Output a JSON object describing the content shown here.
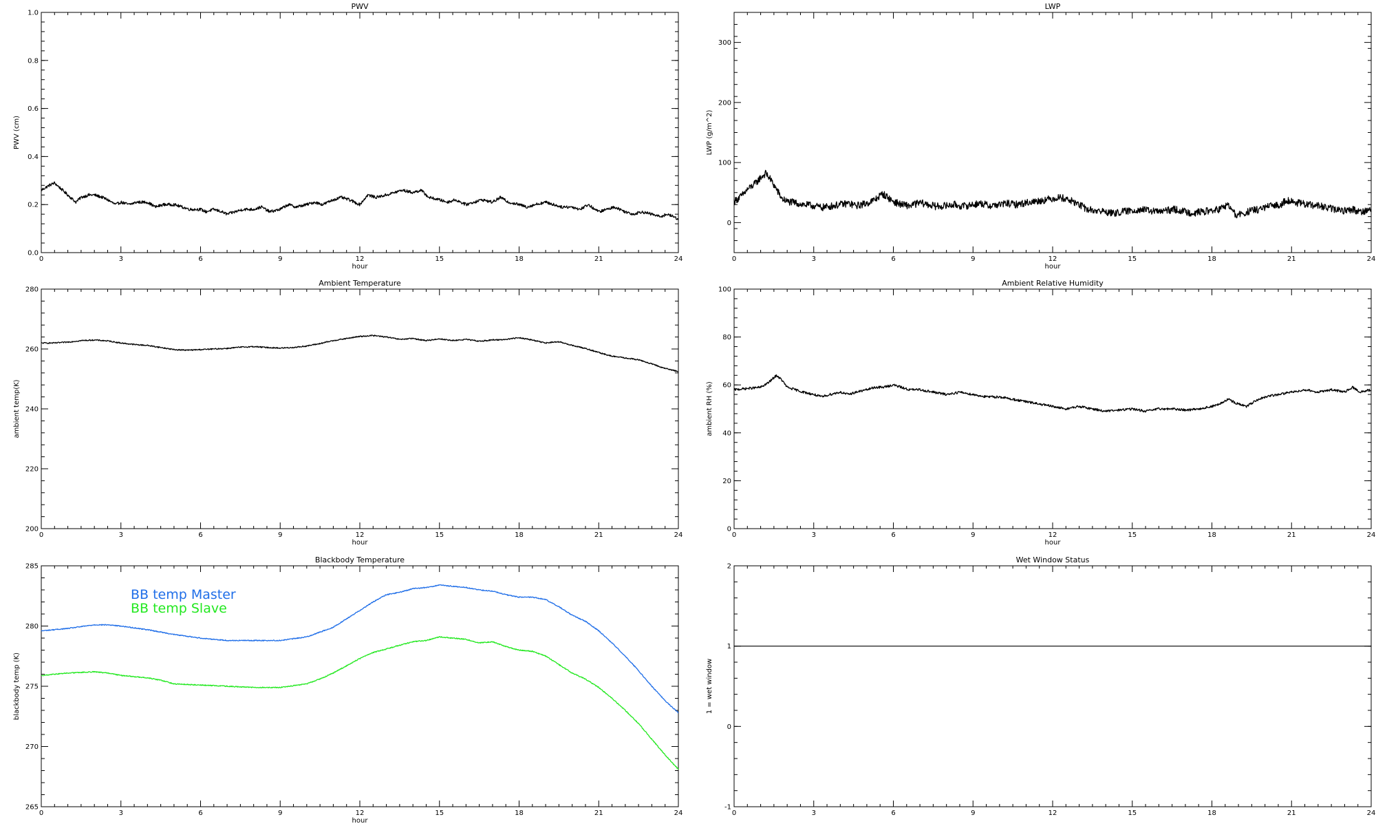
{
  "chart_data": [
    {
      "type": "line",
      "title": "PWV",
      "xlabel": "hour",
      "ylabel": "PWV (cm)",
      "xlim": [
        0,
        24
      ],
      "ylim": [
        0.0,
        1.0
      ],
      "xticks": [
        "0",
        "3",
        "6",
        "9",
        "12",
        "15",
        "18",
        "21",
        "24"
      ],
      "yticks": [
        "0.0",
        "0.2",
        "0.4",
        "0.6",
        "0.8",
        "1.0"
      ],
      "series": [
        {
          "color": "#000000",
          "noise": 0.006,
          "x": [
            0,
            0.3,
            0.5,
            0.8,
            1.0,
            1.3,
            1.5,
            1.8,
            2.0,
            2.3,
            2.5,
            2.8,
            3.0,
            3.3,
            3.6,
            4.0,
            4.3,
            4.6,
            5.0,
            5.3,
            5.6,
            6.0,
            6.2,
            6.5,
            6.8,
            7.0,
            7.3,
            7.6,
            8.0,
            8.3,
            8.6,
            9.0,
            9.3,
            9.6,
            10.0,
            10.3,
            10.6,
            11.0,
            11.3,
            11.6,
            12.0,
            12.3,
            12.6,
            13.0,
            13.3,
            13.6,
            14.0,
            14.3,
            14.6,
            15.0,
            15.3,
            15.6,
            16.0,
            16.3,
            16.6,
            17.0,
            17.3,
            17.6,
            18.0,
            18.3,
            18.6,
            19.0,
            19.3,
            19.6,
            20.0,
            20.3,
            20.6,
            21.0,
            21.3,
            21.6,
            22.0,
            22.3,
            22.6,
            23.0,
            23.3,
            23.6,
            24.0
          ],
          "y": [
            0.26,
            0.28,
            0.29,
            0.26,
            0.24,
            0.21,
            0.23,
            0.24,
            0.24,
            0.23,
            0.22,
            0.2,
            0.21,
            0.2,
            0.21,
            0.21,
            0.19,
            0.2,
            0.2,
            0.19,
            0.18,
            0.18,
            0.17,
            0.18,
            0.17,
            0.16,
            0.17,
            0.18,
            0.18,
            0.19,
            0.17,
            0.18,
            0.2,
            0.19,
            0.2,
            0.21,
            0.2,
            0.22,
            0.23,
            0.22,
            0.2,
            0.24,
            0.23,
            0.24,
            0.25,
            0.26,
            0.25,
            0.26,
            0.23,
            0.22,
            0.21,
            0.22,
            0.2,
            0.21,
            0.22,
            0.21,
            0.23,
            0.21,
            0.2,
            0.19,
            0.2,
            0.21,
            0.2,
            0.19,
            0.19,
            0.18,
            0.2,
            0.17,
            0.18,
            0.19,
            0.17,
            0.16,
            0.17,
            0.16,
            0.15,
            0.16,
            0.14
          ]
        }
      ]
    },
    {
      "type": "line",
      "title": "LWP",
      "xlabel": "hour",
      "ylabel": "LWP (g/m^2)",
      "xlim": [
        0,
        24
      ],
      "ylim": [
        -50,
        350
      ],
      "xticks": [
        "0",
        "3",
        "6",
        "9",
        "12",
        "15",
        "18",
        "21",
        "24"
      ],
      "yticks": [
        "0",
        "100",
        "200",
        "300"
      ],
      "series": [
        {
          "color": "#000000",
          "noise": 6,
          "x": [
            0,
            0.3,
            0.5,
            0.8,
            1.0,
            1.2,
            1.4,
            1.6,
            1.8,
            2.0,
            2.3,
            2.6,
            3.0,
            3.3,
            3.6,
            4.0,
            4.3,
            4.6,
            5.0,
            5.3,
            5.6,
            6.0,
            6.3,
            6.6,
            7.0,
            7.3,
            7.6,
            8.0,
            8.3,
            8.6,
            9.0,
            9.3,
            9.6,
            10.0,
            10.3,
            10.6,
            11.0,
            11.3,
            11.6,
            12.0,
            12.3,
            12.6,
            13.0,
            13.3,
            13.6,
            14.0,
            14.3,
            14.6,
            15.0,
            15.3,
            15.6,
            16.0,
            16.3,
            16.6,
            17.0,
            17.3,
            17.6,
            18.0,
            18.3,
            18.6,
            18.9,
            19.2,
            19.5,
            19.8,
            20.0,
            20.3,
            20.6,
            20.8,
            21.0,
            21.3,
            21.6,
            22.0,
            22.3,
            22.6,
            23.0,
            23.3,
            23.6,
            24.0
          ],
          "y": [
            35,
            45,
            55,
            65,
            75,
            82,
            70,
            55,
            40,
            35,
            33,
            30,
            28,
            25,
            27,
            30,
            32,
            28,
            32,
            38,
            48,
            35,
            30,
            28,
            33,
            30,
            27,
            28,
            30,
            27,
            30,
            32,
            28,
            30,
            32,
            30,
            33,
            35,
            37,
            40,
            42,
            38,
            30,
            22,
            20,
            18,
            15,
            18,
            20,
            22,
            20,
            18,
            20,
            22,
            18,
            16,
            18,
            20,
            22,
            30,
            12,
            15,
            20,
            22,
            25,
            28,
            30,
            38,
            35,
            32,
            30,
            28,
            25,
            22,
            20,
            22,
            18,
            22
          ]
        }
      ]
    },
    {
      "type": "line",
      "title": "Ambient Temperature",
      "xlabel": "hour",
      "ylabel": "ambient temp(K)",
      "xlim": [
        0,
        24
      ],
      "ylim": [
        200,
        280
      ],
      "xticks": [
        "0",
        "3",
        "6",
        "9",
        "12",
        "15",
        "18",
        "21",
        "24"
      ],
      "yticks": [
        "200",
        "220",
        "240",
        "260",
        "280"
      ],
      "series": [
        {
          "color": "#000000",
          "noise": 0.2,
          "x": [
            0,
            0.5,
            1.0,
            1.5,
            2.0,
            2.5,
            3.0,
            3.5,
            4.0,
            4.5,
            5.0,
            5.5,
            6.0,
            6.5,
            7.0,
            7.5,
            8.0,
            8.5,
            9.0,
            9.5,
            10.0,
            10.5,
            11.0,
            11.5,
            12.0,
            12.5,
            13.0,
            13.5,
            14.0,
            14.5,
            15.0,
            15.5,
            16.0,
            16.5,
            17.0,
            17.5,
            18.0,
            18.5,
            19.0,
            19.5,
            20.0,
            20.5,
            21.0,
            21.5,
            22.0,
            22.5,
            23.0,
            23.5,
            24.0
          ],
          "y": [
            262,
            262,
            262.3,
            262.8,
            263,
            262.7,
            262,
            261.5,
            261.2,
            260.5,
            259.8,
            259.6,
            259.8,
            260,
            260.2,
            260.6,
            260.8,
            260.5,
            260.3,
            260.5,
            261,
            261.8,
            262.8,
            263.5,
            264.2,
            264.5,
            264,
            263.2,
            263.5,
            262.8,
            263.4,
            262.8,
            263.2,
            262.6,
            263,
            263.2,
            263.8,
            263,
            262,
            262.4,
            261.2,
            260.2,
            258.8,
            257.6,
            257,
            256.4,
            255,
            253.5,
            252.5
          ]
        }
      ]
    },
    {
      "type": "line",
      "title": "Ambient Relative Humidity",
      "xlabel": "hour",
      "ylabel": "ambient RH (%)",
      "xlim": [
        0,
        24
      ],
      "ylim": [
        0,
        100
      ],
      "xticks": [
        "0",
        "3",
        "6",
        "9",
        "12",
        "15",
        "18",
        "21",
        "24"
      ],
      "yticks": [
        "0",
        "20",
        "40",
        "60",
        "80",
        "100"
      ],
      "series": [
        {
          "color": "#000000",
          "noise": 0.5,
          "x": [
            0,
            0.5,
            1.0,
            1.3,
            1.6,
            1.8,
            2.0,
            2.3,
            2.6,
            3.0,
            3.3,
            3.6,
            4.0,
            4.3,
            4.6,
            5.0,
            5.3,
            5.6,
            6.0,
            6.3,
            6.6,
            7.0,
            7.5,
            8.0,
            8.5,
            9.0,
            9.5,
            10.0,
            10.5,
            11.0,
            11.5,
            12.0,
            12.5,
            13.0,
            13.5,
            14.0,
            14.5,
            15.0,
            15.5,
            16.0,
            16.5,
            17.0,
            17.5,
            18.0,
            18.3,
            18.6,
            19.0,
            19.3,
            19.6,
            20.0,
            20.5,
            21.0,
            21.5,
            22.0,
            22.5,
            23.0,
            23.3,
            23.6,
            24.0
          ],
          "y": [
            58,
            58.5,
            59,
            61,
            64,
            62,
            59,
            58,
            57,
            56,
            55,
            56,
            57,
            56,
            57,
            58,
            59,
            59,
            60,
            59,
            58,
            58,
            57,
            56,
            57,
            56,
            55,
            55,
            54,
            53,
            52,
            51,
            50,
            51,
            50,
            49,
            49.5,
            50,
            49,
            50,
            50,
            49.5,
            50,
            51,
            52,
            54,
            52,
            51,
            53,
            55,
            56,
            57,
            58,
            57,
            58,
            57,
            59,
            57,
            58
          ]
        }
      ]
    },
    {
      "type": "line",
      "title": "Blackbody Temperature",
      "xlabel": "hour",
      "ylabel": "blackbody temp (K)",
      "xlim": [
        0,
        24
      ],
      "ylim": [
        265,
        285
      ],
      "xticks": [
        "0",
        "3",
        "6",
        "9",
        "12",
        "15",
        "18",
        "21",
        "24"
      ],
      "yticks": [
        "265",
        "270",
        "275",
        "280",
        "285"
      ],
      "series": [
        {
          "name": "BB temp Master",
          "color": "#1f6ee8",
          "noise": 0.04,
          "x": [
            0,
            1.0,
            2.0,
            2.5,
            3.0,
            4.0,
            5.0,
            6.0,
            7.0,
            8.0,
            9.0,
            10.0,
            10.5,
            11.0,
            11.5,
            12.0,
            12.5,
            13.0,
            13.5,
            14.0,
            14.5,
            15.0,
            15.5,
            16.0,
            16.5,
            17.0,
            17.5,
            18.0,
            18.5,
            19.0,
            19.5,
            20.0,
            20.5,
            21.0,
            21.5,
            22.0,
            22.5,
            23.0,
            23.5,
            24.0
          ],
          "y": [
            279.6,
            279.8,
            280.1,
            280.1,
            280.0,
            279.7,
            279.3,
            279.0,
            278.8,
            278.8,
            278.8,
            279.1,
            279.5,
            279.9,
            280.6,
            281.3,
            282.0,
            282.6,
            282.8,
            283.1,
            283.2,
            283.4,
            283.3,
            283.2,
            283.0,
            282.9,
            282.6,
            282.4,
            282.4,
            282.2,
            281.6,
            280.9,
            280.4,
            279.6,
            278.6,
            277.5,
            276.3,
            275.0,
            273.8,
            272.8
          ]
        },
        {
          "name": "BB temp Slave",
          "color": "#22e81f",
          "noise": 0.04,
          "x": [
            0,
            1.0,
            2.0,
            2.5,
            3.0,
            4.0,
            4.5,
            5.0,
            6.0,
            7.0,
            8.0,
            9.0,
            10.0,
            10.5,
            11.0,
            11.5,
            12.0,
            12.5,
            13.0,
            13.5,
            14.0,
            14.5,
            15.0,
            15.5,
            16.0,
            16.5,
            17.0,
            17.5,
            18.0,
            18.5,
            19.0,
            19.5,
            20.0,
            20.5,
            21.0,
            21.5,
            22.0,
            22.5,
            23.0,
            23.5,
            24.0
          ],
          "y": [
            275.9,
            276.1,
            276.2,
            276.1,
            275.9,
            275.7,
            275.5,
            275.2,
            275.1,
            275.0,
            274.9,
            274.9,
            275.2,
            275.6,
            276.1,
            276.7,
            277.3,
            277.8,
            278.1,
            278.4,
            278.7,
            278.8,
            279.1,
            279.0,
            278.9,
            278.6,
            278.7,
            278.3,
            278.0,
            277.9,
            277.5,
            276.8,
            276.1,
            275.6,
            274.9,
            274.0,
            273.0,
            271.9,
            270.6,
            269.3,
            268.1
          ]
        }
      ]
    },
    {
      "type": "line",
      "title": "Wet Window Status",
      "xlabel": "",
      "ylabel": "1 = wet window",
      "xlim": [
        0,
        24
      ],
      "ylim": [
        -1,
        2
      ],
      "xticks": [
        "0",
        "3",
        "6",
        "9",
        "12",
        "15",
        "18",
        "21",
        "24"
      ],
      "yticks": [
        "-1",
        "0",
        "1",
        "2"
      ],
      "series": [
        {
          "color": "#000000",
          "noise": 0,
          "x": [
            0,
            24
          ],
          "y": [
            1,
            1
          ]
        }
      ]
    }
  ]
}
